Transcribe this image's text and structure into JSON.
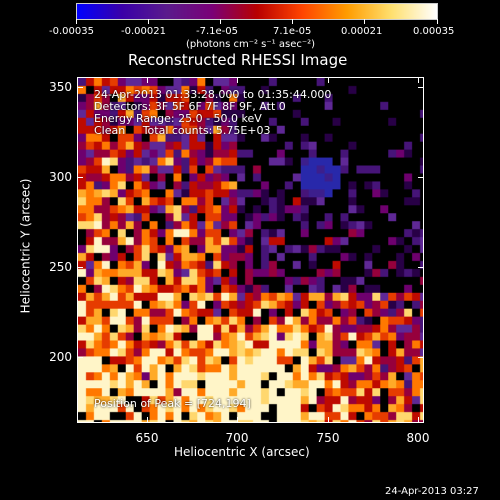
{
  "colorbar": {
    "tick_labels": [
      "-0.00035",
      "-0.00021",
      "-7.1e-05",
      "7.1e-05",
      "0.00021",
      "0.00035"
    ],
    "units": "(photons cm⁻² s⁻¹ asec⁻²)",
    "colors": [
      "#0000ff",
      "#3a00a8",
      "#5a1b8c",
      "#7a0077",
      "#b80000",
      "#ff4400",
      "#ff9c00",
      "#ffe070",
      "#ffffff"
    ]
  },
  "plot": {
    "title": "Reconstructed RHESSI Image",
    "xlabel": "Heliocentric X (arcsec)",
    "ylabel": "Heliocentric Y (arcsec)",
    "x_ticks": [
      "650",
      "700",
      "750",
      "800"
    ],
    "y_ticks": [
      "350",
      "300",
      "250",
      "200"
    ],
    "info_lines": [
      "24-Apr-2013 01:33:28.000 to 01:35:44.000",
      "Detectors: 3F 5F 6F 7F 8F 9F, Att 0",
      "Energy Range: 25.0 - 50.0 keV",
      "Clean     Total counts: 5.75E+03"
    ],
    "peak_label": "Position of Peak = [724,194]"
  },
  "footer": {
    "timestamp": "24-Apr-2013 03:27"
  }
}
